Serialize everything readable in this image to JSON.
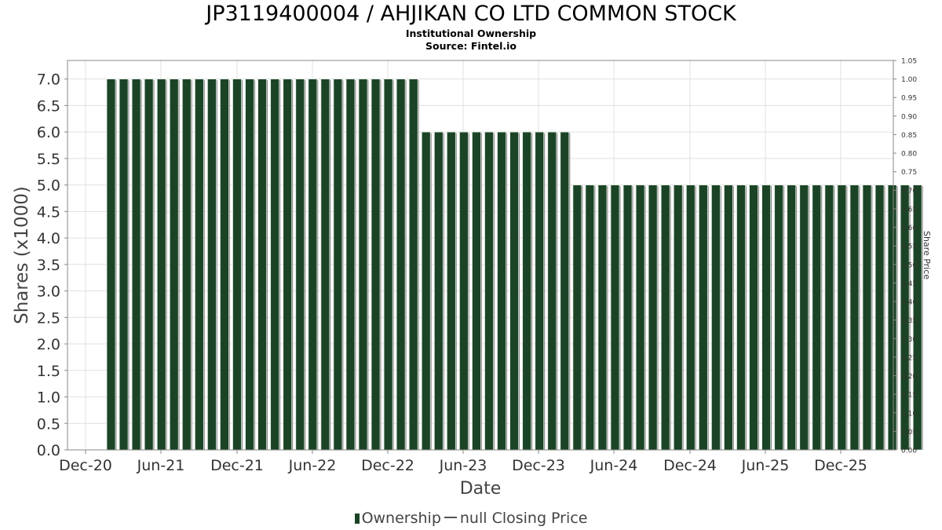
{
  "header": {
    "title": "JP3119400004 / AHJIKAN CO LTD COMMON STOCK",
    "subtitle1": "Institutional Ownership",
    "subtitle2": "Source: Fintel.io"
  },
  "legend": {
    "ownership_label": "Ownership",
    "price_label": "null Closing Price"
  },
  "colors": {
    "bar_fill": "#1b4426",
    "bar_shadow": "#8c8c8c",
    "grid": "#e0e0e0",
    "axis": "#888888"
  },
  "chart_data": {
    "type": "bar",
    "xlabel": "Date",
    "ylabel": "Shares (x1000)",
    "y2label": "Share Price",
    "ylim": [
      0,
      7.35
    ],
    "y2lim": [
      0,
      1.05
    ],
    "yticks": [
      0.0,
      0.5,
      1.0,
      1.5,
      2.0,
      2.5,
      3.0,
      3.5,
      4.0,
      4.5,
      5.0,
      5.5,
      6.0,
      6.5,
      7.0
    ],
    "y2ticks": [
      0.0,
      0.05,
      0.1,
      0.15,
      0.2,
      0.25,
      0.3,
      0.35,
      0.4,
      0.45,
      0.5,
      0.55,
      0.6,
      0.65,
      0.7,
      0.75,
      0.8,
      0.85,
      0.9,
      0.95,
      1.0,
      1.05
    ],
    "xtick_labels": [
      "Dec-20",
      "Jun-21",
      "Dec-21",
      "Jun-22",
      "Dec-22",
      "Jun-23",
      "Dec-23",
      "Jun-24",
      "Dec-24",
      "Jun-25",
      "Dec-25"
    ],
    "grid": true,
    "legend_position": "bottom",
    "series": [
      {
        "name": "Ownership",
        "values": [
          7.0,
          7.0,
          7.0,
          7.0,
          7.0,
          7.0,
          7.0,
          7.0,
          7.0,
          7.0,
          7.0,
          7.0,
          7.0,
          7.0,
          7.0,
          7.0,
          7.0,
          7.0,
          7.0,
          7.0,
          7.0,
          7.0,
          7.0,
          7.0,
          7.0,
          6.0,
          6.0,
          6.0,
          6.0,
          6.0,
          6.0,
          6.0,
          6.0,
          6.0,
          6.0,
          6.0,
          6.0,
          5.0,
          5.0,
          5.0,
          5.0,
          5.0,
          5.0,
          5.0,
          5.0,
          5.0,
          5.0,
          5.0,
          5.0,
          5.0,
          5.0,
          5.0,
          5.0,
          5.0,
          5.0,
          5.0,
          5.0,
          5.0,
          5.0,
          5.0,
          5.0,
          5.0,
          5.0,
          5.0,
          5.0
        ]
      },
      {
        "name": "null Closing Price",
        "values": []
      }
    ]
  }
}
